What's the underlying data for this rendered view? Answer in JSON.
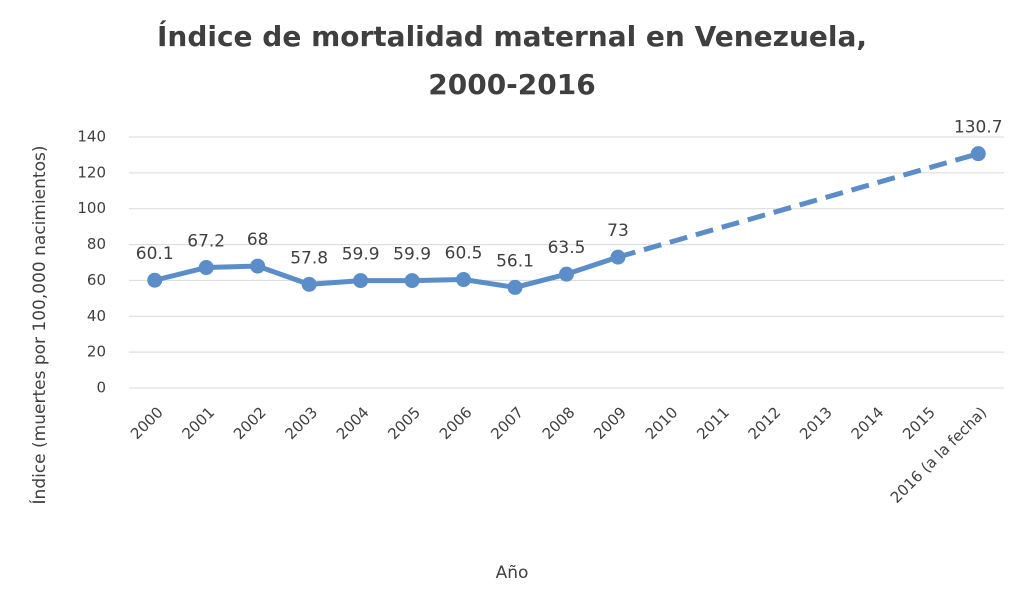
{
  "chart_data": {
    "type": "line",
    "title": [
      "Índice de mortalidad maternal en Venezuela,",
      "2000-2016"
    ],
    "x_label": "Año",
    "y_label": "Índice (muertes por 100,000 nacimientos)",
    "categories": [
      "2000",
      "2001",
      "2002",
      "2003",
      "2004",
      "2005",
      "2006",
      "2007",
      "2008",
      "2009",
      "2010",
      "2011",
      "2012",
      "2013",
      "2014",
      "2015",
      "2016 (a la fecha)"
    ],
    "series": [
      {
        "color": "#5b8ec8",
        "values": [
          60.1,
          67.2,
          68,
          57.8,
          59.9,
          59.9,
          60.5,
          56.1,
          63.5,
          73,
          null,
          null,
          null,
          null,
          null,
          null,
          130.7
        ]
      }
    ],
    "gaps_dashed": true,
    "data_labels": true,
    "ylim": [
      0,
      140
    ],
    "yticks": [
      0,
      20,
      40,
      60,
      80,
      100,
      120,
      140
    ],
    "grid": true
  }
}
